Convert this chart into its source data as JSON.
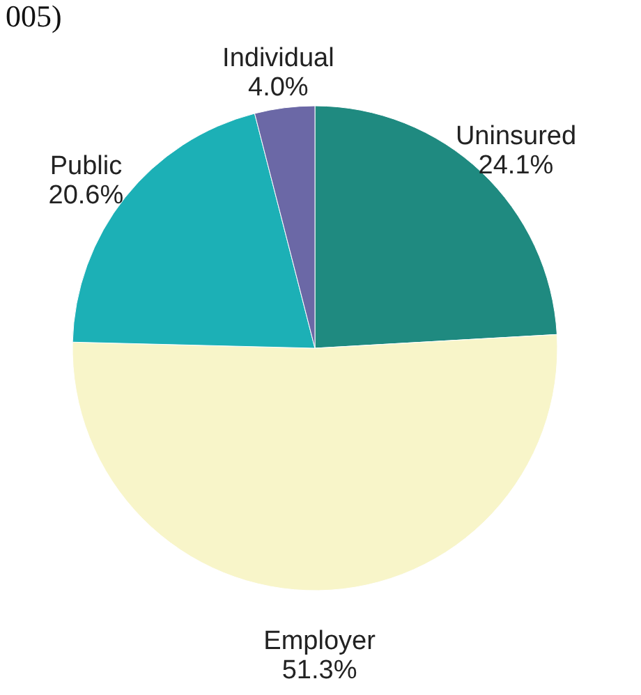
{
  "chart_data": {
    "type": "pie",
    "annotations": [
      "005)"
    ],
    "categories": [
      "Uninsured",
      "Employer",
      "Public",
      "Individual"
    ],
    "values": [
      24.1,
      51.3,
      20.6,
      4.0
    ],
    "value_labels": [
      "24.1%",
      "51.3%",
      "20.6%",
      "4.0%"
    ],
    "colors": [
      "#1f8a80",
      "#f8f5c9",
      "#1cb0b6",
      "#6b68a6"
    ]
  }
}
